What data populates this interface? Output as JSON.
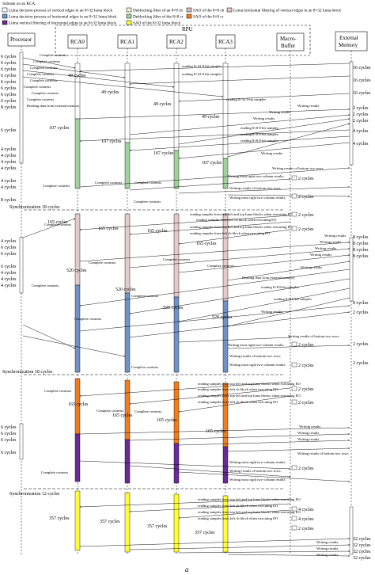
{
  "subtask_title": "Subtask on an RCA:",
  "legend": [
    {
      "label": "Luma decision process of vertical edges in an 8×32 luma block",
      "color": "#ffffff"
    },
    {
      "label": "Deblocking filter of an 8×8 cb",
      "color": "#f2f2d8"
    },
    {
      "label": "SAO of the 8×8 cb",
      "color": "#d9b8b8"
    },
    {
      "label": "Luma horizontal filtering of vertical edges in an 8×32 luma block",
      "color": "#e6c9c9"
    },
    {
      "label": "Luma decision process of horizontal edges in an 8×32 luma block",
      "color": "#6f93c7"
    },
    {
      "label": "Deblocking filter of the 8×8 cr",
      "color": "#9fd39b"
    },
    {
      "label": "SAO of the 8×8 cr",
      "color": "#f27d1a"
    },
    {
      "label": "Luma vertical filtering of horizontal edges in an 8×32 luma block",
      "color": "#6a2a9a"
    },
    {
      "label": "SAO of the 8×32 luma block",
      "color": "#ffff33"
    }
  ],
  "columns": {
    "processor": "Processor",
    "rpu": "RPU",
    "rca0": "RCA0",
    "rca1": "RCA1",
    "rca2": "RCA2",
    "rca3": "RCA3",
    "macro_buffer": "Macro-\nBuffer",
    "external_memory": "External\nMemory"
  },
  "processor_cycles_top": [
    "6 cycles",
    "6 cycles",
    "6 cycles",
    "6 cycles",
    "6 cycles",
    "6 cycles",
    "6 cycles",
    "6 cycles",
    "8 cycles"
  ],
  "processor_cycles_mid1": [
    "6 cycles",
    "4 cycles",
    "4 cycles",
    "4 cycles",
    "4 cycles",
    "4 cycles",
    "4 cycles",
    "8 cycles"
  ],
  "processor_cycles_mid2": [
    "4 cycles",
    "6 cycles",
    "6 cycles",
    "6 cycles",
    "4 cycles",
    "4 cycles",
    "4 cycles"
  ],
  "processor_cycles_bottom": [
    "6 cycles",
    "6 cycles",
    "6 cycles",
    "6 cycles"
  ],
  "proc_messages_top": [
    "Complete contexts",
    "Complete contexts",
    "Complete contexts",
    "Complete contexts",
    "Complete contexts",
    "Complete contexts",
    "Complete contexts",
    "Complete contexts",
    "Reading data from external memory"
  ],
  "sync_labels": [
    "Synchronization 18 cycles",
    "Synchronization 18 cycles",
    "Synchronization 12 cycles"
  ],
  "rca_cycle_labels": {
    "cyc49": "49 cycles",
    "cyc107": "107 cycles",
    "cyc165": "165 cycles",
    "cyc520": "520 cycles",
    "cyc357": "357 cycles"
  },
  "memory_cycles": [
    "16 cycles",
    "16 cycles",
    "16 cycles",
    "2 cycles",
    "2 cycles",
    "2 cycles",
    "4 cycles",
    "4 cycles",
    "8 cycles",
    "8 cycles",
    "8 cycles",
    "8 cycles",
    "8 cycles",
    "2 cycles",
    "2 cycles",
    "2 cycles",
    "32 cycles",
    "32 cycles",
    "32 cycles",
    "32 cycles"
  ],
  "buffer_cycles": [
    "2 cycles",
    "2 cycles",
    "2 cycles",
    "2 cycles",
    "2 cycles",
    "2 cycles",
    "2 cycles",
    "2 cycles",
    "2 cycles",
    "4 cycles",
    "4 cycles",
    "2 cycles"
  ],
  "messages": {
    "read_samples": "reading 8×32 8-bit samples",
    "writing_results": "Writing results",
    "read_cb": "reading 8×8 8-bit samples",
    "write_bottom": "Writing results of bottom two rows",
    "write_right": "Writing most right two-column results",
    "read_top_left": "reading samples from top left and top luma blocks when executing EO",
    "read_left": "reading samples from left cb block when executing EO",
    "complete": "Complete contexts",
    "reading_ext": "Reading data from external memory"
  },
  "caption": "a"
}
